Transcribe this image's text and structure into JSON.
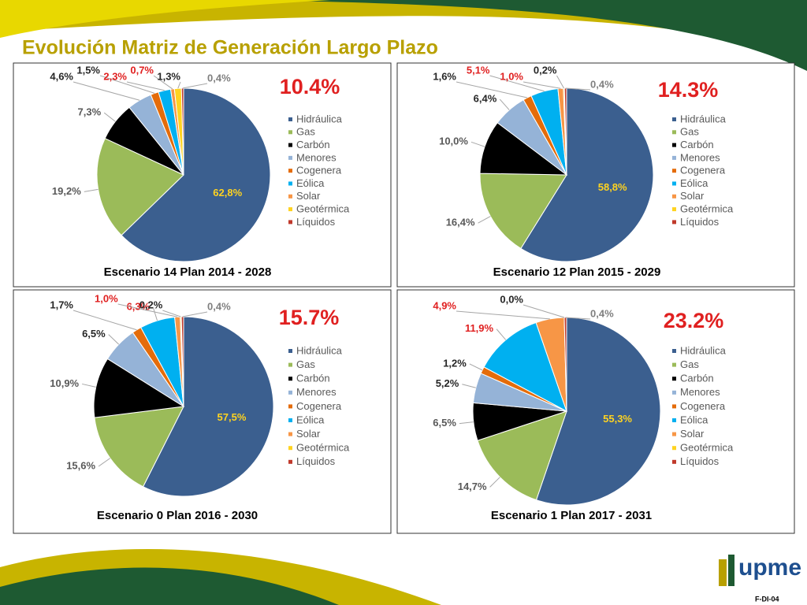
{
  "title": "Evolución Matriz de Generación Largo Plazo",
  "footer": "F-DI-04",
  "logo": "upme",
  "chart_data": [
    {
      "type": "pie",
      "title": "Escenario 14 Plan 2014 - 2028",
      "annotation": "10.4%",
      "categories": [
        "Hidráulica",
        "Gas",
        "Carbón",
        "Menores",
        "Cogenera",
        "Eólica",
        "Solar",
        "Geotérmica",
        "Líquidos"
      ],
      "values": [
        62.8,
        19.2,
        7.3,
        4.6,
        1.5,
        2.3,
        0.7,
        1.3,
        0.4
      ],
      "value_labels": [
        "62,8%",
        "19,2%",
        "7,3%",
        "4,6%",
        "1,5%",
        "2,3%",
        "0,7%",
        "1,3%",
        "0,4%"
      ],
      "colors": [
        "#3b5f8f",
        "#9bbb59",
        "#000000",
        "#95b3d7",
        "#e46c0a",
        "#00b0f0",
        "#f79646",
        "#ffd320",
        "#c0392b"
      ],
      "label_colors": [
        "#ffd320",
        "#595959",
        "#595959",
        "#262626",
        "#262626",
        "#e02020",
        "#e02020",
        "#262626",
        "#7f7f7f"
      ]
    },
    {
      "type": "pie",
      "title": "Escenario 12 Plan 2015 - 2029",
      "annotation": "14.3%",
      "categories": [
        "Hidráulica",
        "Gas",
        "Carbón",
        "Menores",
        "Cogenera",
        "Eólica",
        "Solar",
        "Geotérmica",
        "Líquidos"
      ],
      "values": [
        58.8,
        16.4,
        10.0,
        6.4,
        1.6,
        5.1,
        1.0,
        0.2,
        0.4
      ],
      "value_labels": [
        "58,8%",
        "16,4%",
        "10,0%",
        "6,4%",
        "1,6%",
        "5,1%",
        "1,0%",
        "0,2%",
        "0,4%"
      ],
      "colors": [
        "#3b5f8f",
        "#9bbb59",
        "#000000",
        "#95b3d7",
        "#e46c0a",
        "#00b0f0",
        "#f79646",
        "#ffd320",
        "#c0392b"
      ],
      "label_colors": [
        "#ffd320",
        "#595959",
        "#595959",
        "#262626",
        "#262626",
        "#e02020",
        "#e02020",
        "#262626",
        "#7f7f7f"
      ]
    },
    {
      "type": "pie",
      "title": "Escenario 0 Plan 2016 - 2030",
      "annotation": "15.7%",
      "categories": [
        "Hidráulica",
        "Gas",
        "Carbón",
        "Menores",
        "Cogenera",
        "Eólica",
        "Solar",
        "Geotérmica",
        "Líquidos"
      ],
      "values": [
        57.5,
        15.6,
        10.9,
        6.5,
        1.7,
        6.3,
        1.0,
        0.2,
        0.4
      ],
      "value_labels": [
        "57,5%",
        "15,6%",
        "10,9%",
        "6,5%",
        "1,7%",
        "6,3%",
        "1,0%",
        "0,2%",
        "0,4%"
      ],
      "colors": [
        "#3b5f8f",
        "#9bbb59",
        "#000000",
        "#95b3d7",
        "#e46c0a",
        "#00b0f0",
        "#f79646",
        "#ffd320",
        "#c0392b"
      ],
      "label_colors": [
        "#ffd320",
        "#595959",
        "#595959",
        "#262626",
        "#262626",
        "#e02020",
        "#e02020",
        "#262626",
        "#7f7f7f"
      ]
    },
    {
      "type": "pie",
      "title": "Escenario 1 Plan 2017 - 2031",
      "annotation": "23.2%",
      "categories": [
        "Hidráulica",
        "Gas",
        "Carbón",
        "Menores",
        "Cogenera",
        "Eólica",
        "Solar",
        "Geotérmica",
        "Líquidos"
      ],
      "values": [
        55.3,
        14.7,
        6.5,
        5.2,
        1.2,
        11.9,
        4.9,
        0.0,
        0.4
      ],
      "value_labels": [
        "55,3%",
        "14,7%",
        "6,5%",
        "5,2%",
        "1,2%",
        "11,9%",
        "4,9%",
        "0,0%",
        "0,4%"
      ],
      "colors": [
        "#3b5f8f",
        "#9bbb59",
        "#000000",
        "#95b3d7",
        "#e46c0a",
        "#00b0f0",
        "#f79646",
        "#ffd320",
        "#c0392b"
      ],
      "label_colors": [
        "#ffd320",
        "#595959",
        "#595959",
        "#262626",
        "#262626",
        "#e02020",
        "#e02020",
        "#262626",
        "#7f7f7f"
      ]
    }
  ]
}
